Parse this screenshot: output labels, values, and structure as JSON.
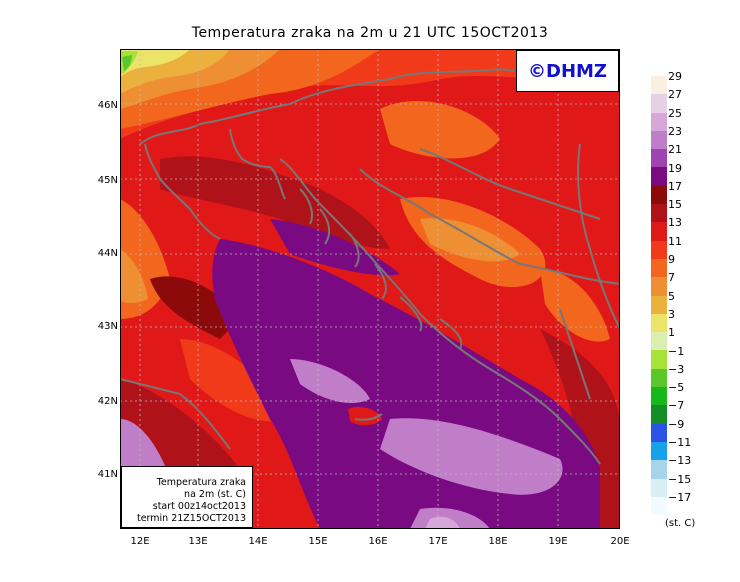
{
  "title": "Temperatura zraka na 2m u 21 UTC 15OCT2013",
  "logo": "©DHMZ",
  "info_box": {
    "line1": "Temperatura zraka",
    "line2": "na 2m (st. C)",
    "line3": "start 00z14oct2013",
    "line4": "termin 21Z15OCT2013"
  },
  "lat_labels": [
    "46N",
    "45N",
    "44N",
    "43N",
    "42N",
    "41N"
  ],
  "lon_labels": [
    "12E",
    "13E",
    "14E",
    "15E",
    "16E",
    "17E",
    "18E",
    "19E",
    "20E"
  ],
  "colorbar": {
    "labels": [
      "29",
      "27",
      "25",
      "23",
      "21",
      "19",
      "17",
      "15",
      "13",
      "11",
      "9",
      "7",
      "5",
      "3",
      "1",
      "−1",
      "−3",
      "−5",
      "−7",
      "−9",
      "−11",
      "−13",
      "−15",
      "−17"
    ],
    "unit": "(st. C)",
    "colors": [
      "#fbeee2",
      "#e6d0e6",
      "#d7a7d9",
      "#c07ec8",
      "#9e44b0",
      "#7a0a82",
      "#8c0a0a",
      "#b0121a",
      "#e01818",
      "#f13a1a",
      "#f2661e",
      "#ee8f34",
      "#ecb13c",
      "#ece468",
      "#dcedb0",
      "#a6e23a",
      "#5ac82a",
      "#16b81a",
      "#148c28",
      "#2a52e6",
      "#16a1e8",
      "#a6d4e8",
      "#d6eef4",
      "#f2fbfd"
    ]
  },
  "map_colors": {
    "sea_dark": "#7a0a82",
    "sea_light": "#c07ec8",
    "coast_line": "#777777",
    "grid": "#bbbbbb"
  }
}
